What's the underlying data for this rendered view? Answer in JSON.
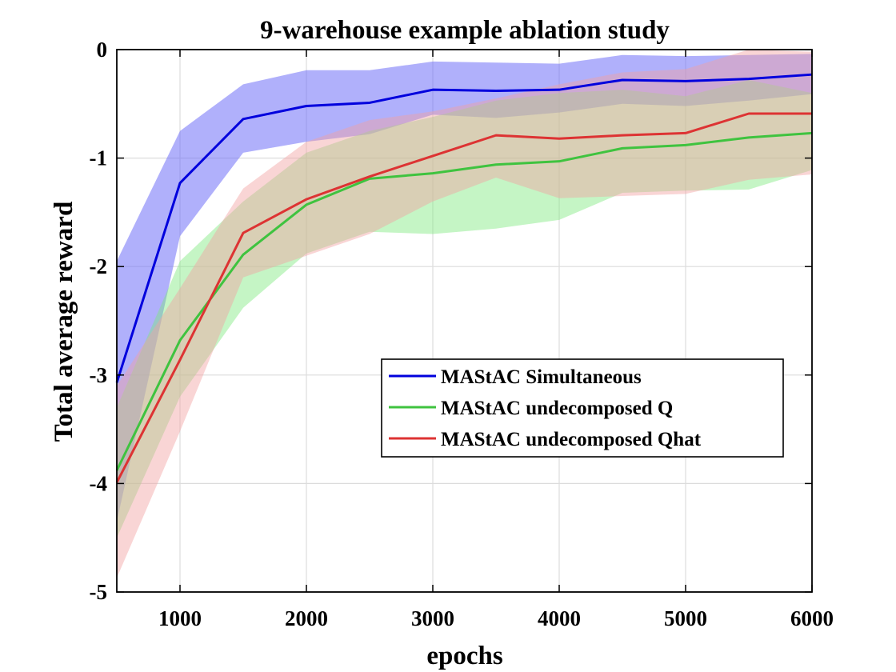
{
  "chart_data": {
    "type": "line",
    "title": "9-warehouse example ablation study",
    "xlabel": "epochs",
    "ylabel": "Total average reward",
    "xlim": [
      500,
      6000
    ],
    "ylim": [
      -5,
      0
    ],
    "xticks": [
      1000,
      2000,
      3000,
      4000,
      5000,
      6000
    ],
    "yticks": [
      0,
      -1,
      -2,
      -3,
      -4,
      -5
    ],
    "xtick_labels": [
      "1000",
      "2000",
      "3000",
      "4000",
      "5000",
      "6000"
    ],
    "ytick_labels": [
      "0",
      "-1",
      "-2",
      "-3",
      "-4",
      "-5"
    ],
    "grid": true,
    "legend_position": "center-right",
    "x": [
      500,
      1000,
      1500,
      2000,
      2500,
      3000,
      3500,
      4000,
      4500,
      5000,
      5500,
      6000
    ],
    "series": [
      {
        "name": "MAStAC Simultaneous",
        "color": "#0000dd",
        "band_color": "#6f6ff8",
        "values": [
          -3.07,
          -1.23,
          -0.64,
          -0.52,
          -0.49,
          -0.37,
          -0.38,
          -0.37,
          -0.28,
          -0.29,
          -0.27,
          -0.23
        ],
        "upper": [
          -1.95,
          -0.75,
          -0.32,
          -0.19,
          -0.19,
          -0.11,
          -0.12,
          -0.13,
          -0.05,
          -0.06,
          -0.05,
          -0.04
        ],
        "lower": [
          -4.35,
          -1.72,
          -0.95,
          -0.85,
          -0.78,
          -0.6,
          -0.63,
          -0.58,
          -0.5,
          -0.52,
          -0.47,
          -0.41
        ]
      },
      {
        "name": "MAStAC undecomposed Q",
        "color": "#3fc33f",
        "band_color": "#7fe87f",
        "values": [
          -3.88,
          -2.68,
          -1.89,
          -1.43,
          -1.19,
          -1.14,
          -1.06,
          -1.03,
          -0.91,
          -0.88,
          -0.81,
          -0.77
        ],
        "upper": [
          -3.3,
          -1.95,
          -1.4,
          -0.95,
          -0.75,
          -0.62,
          -0.47,
          -0.4,
          -0.37,
          -0.43,
          -0.28,
          -0.4
        ],
        "lower": [
          -4.5,
          -3.2,
          -2.38,
          -1.88,
          -1.68,
          -1.7,
          -1.65,
          -1.57,
          -1.32,
          -1.3,
          -1.29,
          -1.11
        ]
      },
      {
        "name": "MAStAC undecomposed Qhat",
        "color": "#dd3333",
        "band_color": "#f2a1a1",
        "values": [
          -3.99,
          -2.86,
          -1.69,
          -1.38,
          -1.17,
          -0.98,
          -0.79,
          -0.82,
          -0.79,
          -0.77,
          -0.59,
          -0.59
        ],
        "upper": [
          -3.1,
          -2.2,
          -1.28,
          -0.85,
          -0.65,
          -0.57,
          -0.45,
          -0.32,
          -0.21,
          -0.18,
          0.0,
          -0.02
        ],
        "lower": [
          -4.87,
          -3.52,
          -2.1,
          -1.9,
          -1.7,
          -1.4,
          -1.18,
          -1.37,
          -1.35,
          -1.33,
          -1.2,
          -1.15
        ]
      }
    ]
  }
}
